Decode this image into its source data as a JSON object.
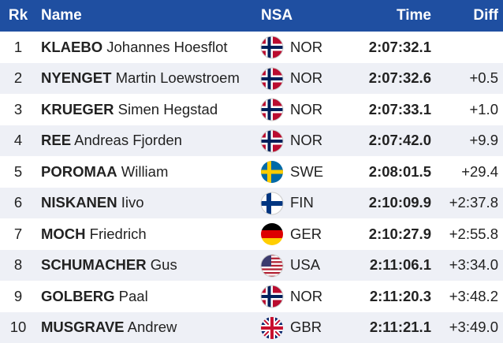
{
  "header": {
    "rk": "Rk",
    "name": "Name",
    "nsa": "NSA",
    "time": "Time",
    "diff": "Diff"
  },
  "rows": [
    {
      "rank": 1,
      "surname": "KLAEBO",
      "given": "Johannes Hoesflot",
      "nsa": "NOR",
      "time": "2:07:32.1"
    },
    {
      "rank": 2,
      "surname": "NYENGET",
      "given": "Martin Loewstroem",
      "nsa": "NOR",
      "time": "2:07:32.6",
      "diff": "+0.5"
    },
    {
      "rank": 3,
      "surname": "KRUEGER",
      "given": "Simen Hegstad",
      "nsa": "NOR",
      "time": "2:07:33.1",
      "diff": "+1.0"
    },
    {
      "rank": 4,
      "surname": "REE",
      "given": "Andreas Fjorden",
      "nsa": "NOR",
      "time": "2:07:42.0",
      "diff": "+9.9"
    },
    {
      "rank": 5,
      "surname": "POROMAA",
      "given": "William",
      "nsa": "SWE",
      "time": "2:08:01.5",
      "diff": "+29.4"
    },
    {
      "rank": 6,
      "surname": "NISKANEN",
      "given": "Iivo",
      "nsa": "FIN",
      "time": "2:10:09.9",
      "diff": "+2:37.8"
    },
    {
      "rank": 7,
      "surname": "MOCH",
      "given": "Friedrich",
      "nsa": "GER",
      "time": "2:10:27.9",
      "diff": "+2:55.8"
    },
    {
      "rank": 8,
      "surname": "SCHUMACHER",
      "given": "Gus",
      "nsa": "USA",
      "time": "2:11:06.1",
      "diff": "+3:34.0"
    },
    {
      "rank": 9,
      "surname": "GOLBERG",
      "given": "Paal",
      "nsa": "NOR",
      "time": "2:11:20.3",
      "diff": "+3:48.2"
    },
    {
      "rank": 10,
      "surname": "MUSGRAVE",
      "given": "Andrew",
      "nsa": "GBR",
      "time": "2:11:21.1",
      "diff": "+3:49.0"
    }
  ]
}
